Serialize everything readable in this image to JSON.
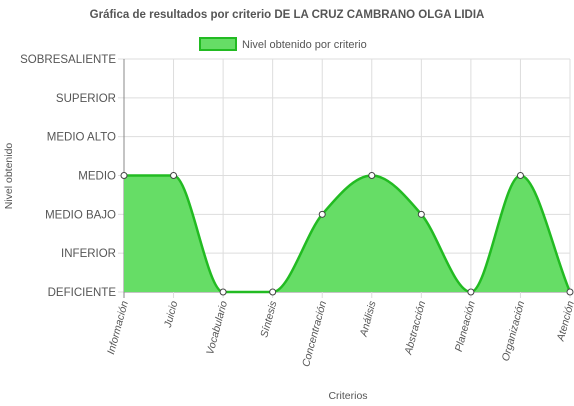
{
  "chart_data": {
    "type": "area",
    "title": "Gráfica de resultados por criterio DE LA CRUZ CAMBRANO OLGA LIDIA",
    "xlabel": "Criterios",
    "ylabel": "Nivel obtenido",
    "legend": {
      "position": "top",
      "label": "Nivel obtenido por criterio"
    },
    "y_levels": [
      "DEFICIENTE",
      "INFERIOR",
      "MEDIO BAJO",
      "MEDIO",
      "MEDIO ALTO",
      "SUPERIOR",
      "SOBRESALIENTE"
    ],
    "ylim": [
      0,
      6
    ],
    "grid": true,
    "categories": [
      "Información",
      "Juicio",
      "Vocabulario",
      "Síntesis",
      "Concentración",
      "Análisis",
      "Abstracción",
      "Planeación",
      "Organización",
      "Atención"
    ],
    "series": [
      {
        "name": "Nivel obtenido por criterio",
        "values": [
          3,
          3,
          0,
          0,
          2,
          3,
          2,
          0,
          3,
          0
        ]
      }
    ],
    "colors": {
      "fill": "#66dd66",
      "line": "#22bb22",
      "grid": "#dddddd",
      "axis": "#888888",
      "point_border": "#444444"
    }
  }
}
